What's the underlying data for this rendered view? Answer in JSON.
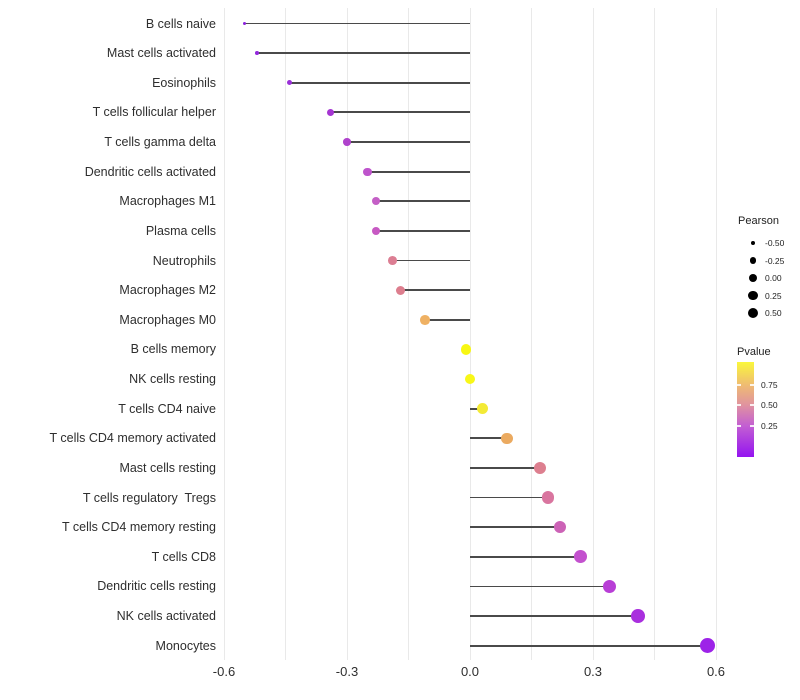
{
  "figure": {
    "background": "#ffffff"
  },
  "chart_data": {
    "type": "lollipop",
    "orientation": "horizontal",
    "title": "",
    "xlabel": "",
    "ylabel": "",
    "categories": [
      "B cells naive",
      "Mast cells activated",
      "Eosinophils",
      "T cells follicular helper",
      "T cells gamma delta",
      "Dendritic cells activated",
      "Macrophages M1",
      "Plasma cells",
      "Neutrophils",
      "Macrophages M2",
      "Macrophages M0",
      "B cells memory",
      "NK cells resting",
      "T cells CD4 naive",
      "T cells CD4 memory activated",
      "Mast cells resting",
      "T cells regulatory  Tregs",
      "T cells CD4 memory resting",
      "T cells CD8",
      "Dendritic cells resting",
      "NK cells activated",
      "Monocytes"
    ],
    "series": [
      {
        "name": "Pearson correlation",
        "values": [
          -0.55,
          -0.52,
          -0.44,
          -0.34,
          -0.3,
          -0.25,
          -0.23,
          -0.23,
          -0.19,
          -0.17,
          -0.11,
          -0.01,
          0.0,
          0.03,
          0.09,
          0.17,
          0.19,
          0.22,
          0.27,
          0.34,
          0.41,
          0.58
        ]
      }
    ],
    "point_colors": [
      "#8C22DC",
      "#9329DC",
      "#9A30D8",
      "#A535D2",
      "#AF42CC",
      "#BE54CC",
      "#C45FC6",
      "#C759C3",
      "#DC7E93",
      "#DD7E8E",
      "#EFB163",
      "#F8F713",
      "#F8F718",
      "#F3EA35",
      "#EBAA60",
      "#DD7F8F",
      "#D9759F",
      "#CC62B6",
      "#C351CE",
      "#B83ED6",
      "#A92FDE",
      "#9D23E8"
    ],
    "xlim": [
      -0.66,
      0.64
    ],
    "x_ticks": {
      "values": [
        -0.6,
        -0.3,
        0.0,
        0.3,
        0.6
      ],
      "labels": [
        "-0.6",
        "-0.3",
        "0.0",
        "0.3",
        "0.6"
      ]
    },
    "x_minor_ticks": [
      -0.45,
      -0.15,
      0.15,
      0.45
    ],
    "grid": "vertical-only",
    "segment_color": "#4a4a4a",
    "size_legend": {
      "title": "Pearson",
      "entries": [
        {
          "label": "-0.50",
          "value": -0.5
        },
        {
          "label": "-0.25",
          "value": -0.25
        },
        {
          "label": "0.00",
          "value": 0.0
        },
        {
          "label": "0.25",
          "value": 0.25
        },
        {
          "label": "0.50",
          "value": 0.5
        }
      ]
    },
    "color_legend": {
      "title": "Pvalue",
      "tick_labels": [
        "0.75",
        "0.50",
        "0.25"
      ],
      "gradient_top_to_bottom": [
        "#FAF73C",
        "#EFBC72",
        "#E0939F",
        "#C35FD2",
        "#9414F0"
      ]
    }
  }
}
